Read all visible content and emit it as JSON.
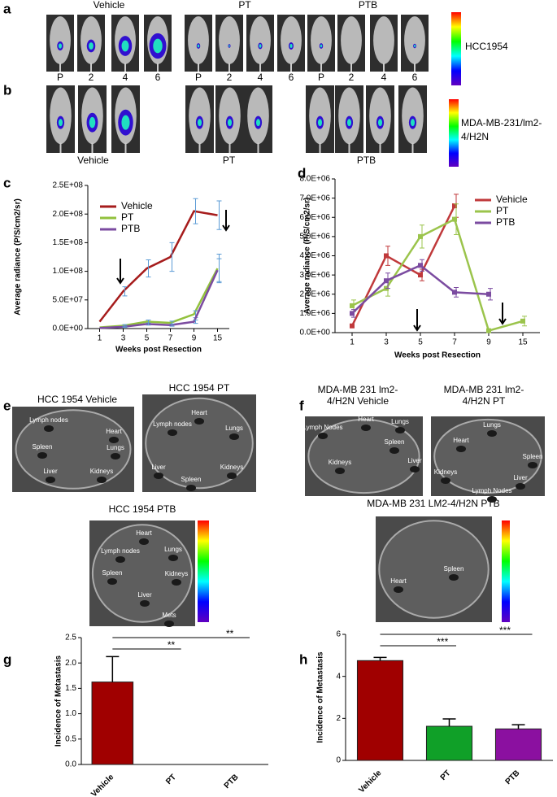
{
  "panel_a": {
    "label": "a",
    "groups": [
      "Vehicle",
      "PT",
      "PTB"
    ],
    "cell_line": "HCC1954",
    "timepoints": [
      [
        "P",
        "2",
        "4",
        "6"
      ],
      [
        "P",
        "2",
        "4",
        "6"
      ],
      [
        "P",
        "2",
        "4",
        "6"
      ]
    ]
  },
  "panel_b": {
    "label": "b",
    "groups": [
      "Vehicle",
      "PT",
      "PTB"
    ],
    "cell_line": [
      "MDA-MB-231/lm2-",
      "4/H2N"
    ]
  },
  "panel_e": {
    "label": "e",
    "dishes": [
      {
        "title": "HCC 1954 Vehicle",
        "organs": [
          "Lymph nodes",
          "Heart",
          "Spleen",
          "Lungs",
          "Liver",
          "Kidneys"
        ]
      },
      {
        "title": "HCC 1954 PT",
        "organs": [
          "Heart",
          "Lymph nodes",
          "Lungs",
          "Liver",
          "Spleen",
          "Kidneys"
        ]
      },
      {
        "title": "HCC 1954  PTB",
        "organs": [
          "Heart",
          "Lymph nodes",
          "Lungs",
          "Spleen",
          "Kidneys",
          "Liver",
          "Mets"
        ]
      }
    ]
  },
  "panel_f": {
    "label": "f",
    "dishes": [
      {
        "title": [
          "MDA-MB 231 lm2-",
          "4/H2N  Vehicle"
        ],
        "organs": [
          "Lymph Nodes",
          "Heart",
          "Lungs",
          "Spleen",
          "Liver",
          "Kidneys"
        ]
      },
      {
        "title": [
          "MDA-MB 231 lm2-",
          "4/H2N  PT"
        ],
        "organs": [
          "Lungs",
          "Heart",
          "Kidneys",
          "Spleen",
          "Liver",
          "Lymph Nodes"
        ]
      },
      {
        "title": [
          "MDA-MB 231 LM2-4/H2N PTB"
        ],
        "organs": [
          "Heart",
          "Spleen"
        ]
      }
    ]
  },
  "chart_data": [
    {
      "type": "line",
      "label": "c",
      "ylabel": "Average radiance (P/S/cm2/sr)",
      "xlabel": "Weeks post Resection",
      "categories": [
        "1",
        "3",
        "5",
        "7",
        "9",
        "15"
      ],
      "legend": "top-left",
      "markers": false,
      "ylim": [
        0,
        250000000
      ],
      "yticks": [
        {
          "value": 0,
          "label": "0.0E+00"
        },
        {
          "value": 50000000,
          "label": "5.0E+07"
        },
        {
          "value": 100000000,
          "label": "1.0E+08"
        },
        {
          "value": 150000000,
          "label": "1.5E+08"
        },
        {
          "value": 200000000,
          "label": "2.0E+08"
        },
        {
          "value": 250000000,
          "label": "2.5E+08"
        }
      ],
      "series": [
        {
          "name": "Vehicle",
          "color": "#a61c1c",
          "values": [
            12000000,
            65000000,
            105000000,
            125000000,
            205000000,
            198000000
          ],
          "errors": [
            null,
            8000000,
            15000000,
            25000000,
            22000000,
            25000000
          ]
        },
        {
          "name": "PT",
          "color": "#92c13d",
          "values": [
            2000000,
            5000000,
            12000000,
            10000000,
            25000000,
            105000000
          ],
          "errors": [
            null,
            2000000,
            3000000,
            3000000,
            6000000,
            25000000
          ]
        },
        {
          "name": "PTB",
          "color": "#7b4ba0",
          "values": [
            1000000,
            3000000,
            8000000,
            6000000,
            12000000,
            102000000
          ],
          "errors": [
            null,
            1000000,
            2000000,
            2000000,
            3000000,
            20000000
          ]
        }
      ]
    },
    {
      "type": "line",
      "label": "d",
      "ylabel": "Average radiance (P/S/cm2/sr)",
      "xlabel": "Weeks post Resection",
      "categories": [
        "1",
        "3",
        "5",
        "7",
        "9",
        "15"
      ],
      "legend": "top-right",
      "markers": true,
      "ylim": [
        0,
        8000000
      ],
      "yticks": [
        {
          "value": 0,
          "label": "0.0E+00"
        },
        {
          "value": 1000000,
          "label": "1.0E+06"
        },
        {
          "value": 2000000,
          "label": "2.0E+06"
        },
        {
          "value": 3000000,
          "label": "3.0E+06"
        },
        {
          "value": 4000000,
          "label": "4.0E+06"
        },
        {
          "value": 5000000,
          "label": "5.0E+06"
        },
        {
          "value": 6000000,
          "label": "6.0E+06"
        },
        {
          "value": 7000000,
          "label": "7.0E+06"
        },
        {
          "value": 8000000,
          "label": "8.0E+06"
        }
      ],
      "series": [
        {
          "name": "Vehicle",
          "color": "#c0393b",
          "values": [
            350000,
            4000000,
            3000000,
            6600000,
            null,
            null
          ],
          "errors": [
            null,
            500000,
            300000,
            600000,
            null,
            null
          ]
        },
        {
          "name": "PT",
          "color": "#9bc44c",
          "values": [
            1400000,
            2300000,
            5000000,
            5900000,
            100000,
            600000
          ],
          "errors": [
            300000,
            400000,
            600000,
            800000,
            null,
            250000
          ]
        },
        {
          "name": "PTB",
          "color": "#7b4ba0",
          "values": [
            1000000,
            2700000,
            3500000,
            2100000,
            2000000,
            null
          ],
          "errors": [
            200000,
            400000,
            300000,
            250000,
            300000,
            null
          ]
        }
      ]
    },
    {
      "type": "bar",
      "label": "g",
      "ylabel": "Incidence of Metastasis",
      "categories": [
        "Vehicle",
        "PT",
        "PTB"
      ],
      "values": [
        1.625,
        0,
        0
      ],
      "errors": [
        0.5,
        0,
        0
      ],
      "colors": [
        "#a00000",
        "#a00000",
        "#a00000"
      ],
      "annotations": [
        "**",
        "**"
      ],
      "ylim": [
        0,
        2.5
      ],
      "yticks": [
        {
          "value": 0,
          "label": "0.0"
        },
        {
          "value": 0.5,
          "label": "0.5"
        },
        {
          "value": 1,
          "label": "1.0"
        },
        {
          "value": 1.5,
          "label": "1.5"
        },
        {
          "value": 2,
          "label": "2.0"
        },
        {
          "value": 2.5,
          "label": "2.5"
        }
      ]
    },
    {
      "type": "bar",
      "label": "h",
      "ylabel": "Incidence of Metastasis",
      "categories": [
        "Vehicle",
        "PT",
        "PTB"
      ],
      "values": [
        4.75,
        1.625,
        1.5
      ],
      "errors": [
        0.15,
        0.35,
        0.2
      ],
      "colors": [
        "#a00000",
        "#10a028",
        "#8b10a0"
      ],
      "annotations": [
        "***",
        "***"
      ],
      "ylim": [
        0,
        6
      ],
      "yticks": [
        0,
        2,
        4,
        6
      ]
    }
  ]
}
